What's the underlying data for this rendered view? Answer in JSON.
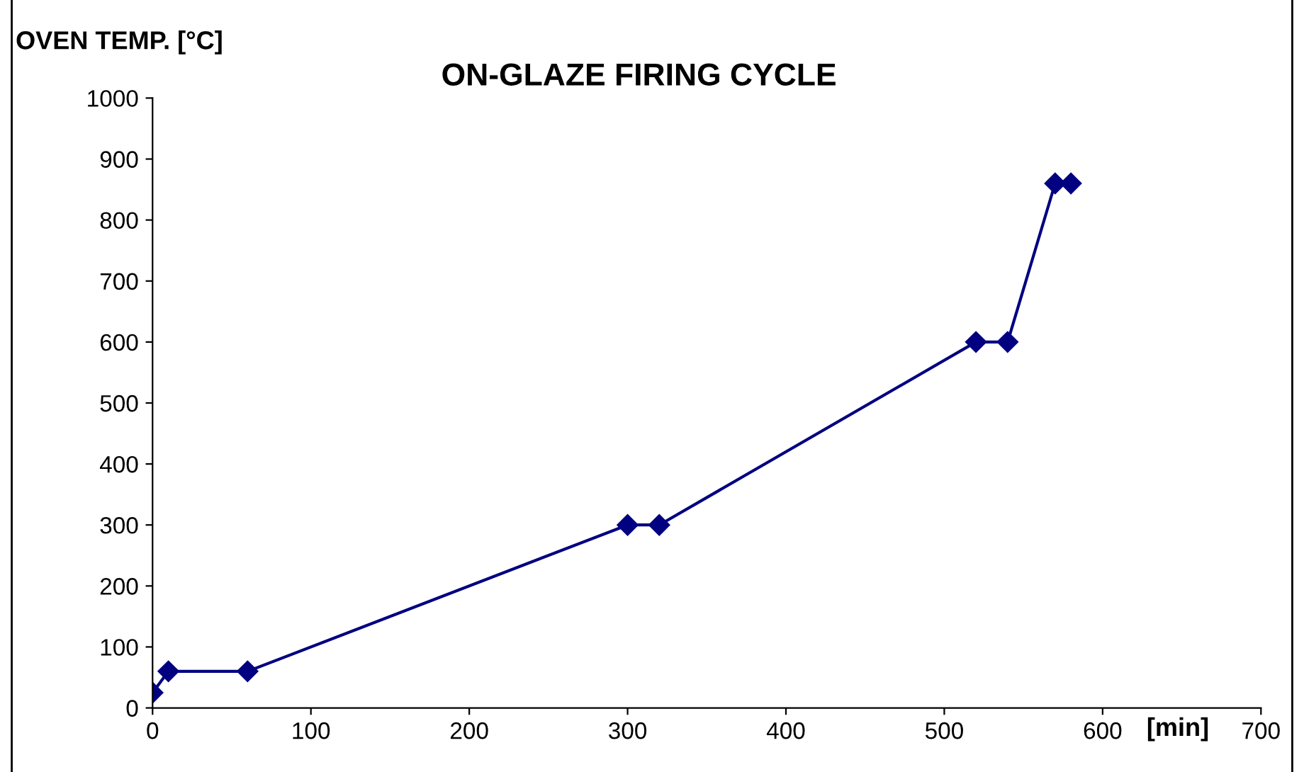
{
  "chart_data": {
    "type": "line",
    "title": "ON-GLAZE FIRING CYCLE",
    "ylabel": "OVEN TEMP. [°C]",
    "xlabel": "[min]",
    "x": [
      0,
      10,
      60,
      300,
      320,
      520,
      540,
      570,
      580
    ],
    "series": [
      {
        "color": "#000080",
        "values": [
          25,
          60,
          60,
          300,
          300,
          600,
          600,
          860,
          860
        ]
      }
    ],
    "xlim": [
      0,
      700
    ],
    "xticks": [
      0,
      100,
      200,
      300,
      400,
      500,
      600,
      700
    ],
    "ylim": [
      0,
      1000
    ],
    "yticks": [
      0,
      100,
      200,
      300,
      400,
      500,
      600,
      700,
      800,
      900,
      1000
    ],
    "grid": false,
    "legend": false,
    "marker": "diamond",
    "line_style": "solid"
  }
}
